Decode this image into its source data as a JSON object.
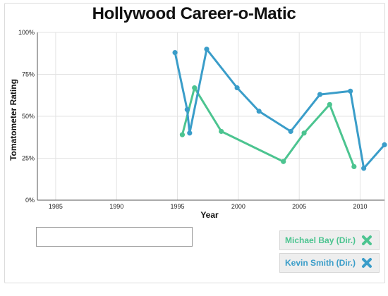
{
  "title": "Hollywood Career-o-Matic",
  "colors": {
    "series1": "#4cc490",
    "series2": "#3a9dc9"
  },
  "search": {
    "value": "",
    "placeholder": ""
  },
  "legend": [
    {
      "label": "Michael Bay (Dir.)",
      "icon": "x-icon",
      "color": "#4cc490"
    },
    {
      "label": "Kevin Smith (Dir.)",
      "icon": "x-icon",
      "color": "#3a9dc9"
    }
  ],
  "chart_data": {
    "type": "line",
    "xlabel": "Year",
    "ylabel": "Tomatometer Rating",
    "xlim": [
      1983.5,
      2012
    ],
    "ylim": [
      0,
      100
    ],
    "x_ticks": [
      1985,
      1990,
      1995,
      2000,
      2005,
      2010
    ],
    "x_tick_labels": [
      "1985",
      "1990",
      "1995",
      "2000",
      "2005",
      "2010"
    ],
    "y_ticks": [
      0,
      25,
      50,
      75,
      100
    ],
    "y_tick_labels": [
      "0%",
      "25%",
      "50%",
      "75%",
      "100%"
    ],
    "grid": true,
    "series": [
      {
        "name": "Michael Bay (Dir.)",
        "x": [
          1995.4,
          1996.4,
          1998.6,
          2003.7,
          2005.4,
          2007.5,
          2009.5
        ],
        "y": [
          39,
          67,
          41,
          23,
          40,
          57,
          20
        ]
      },
      {
        "name": "Kevin Smith (Dir.)",
        "x": [
          1994.8,
          1995.8,
          1996.0,
          1997.4,
          1999.9,
          2001.7,
          2004.3,
          2006.7,
          2009.2,
          2010.3,
          2012
        ],
        "y": [
          88,
          54,
          40,
          90,
          67,
          53,
          41,
          63,
          65,
          19,
          33
        ]
      }
    ]
  }
}
